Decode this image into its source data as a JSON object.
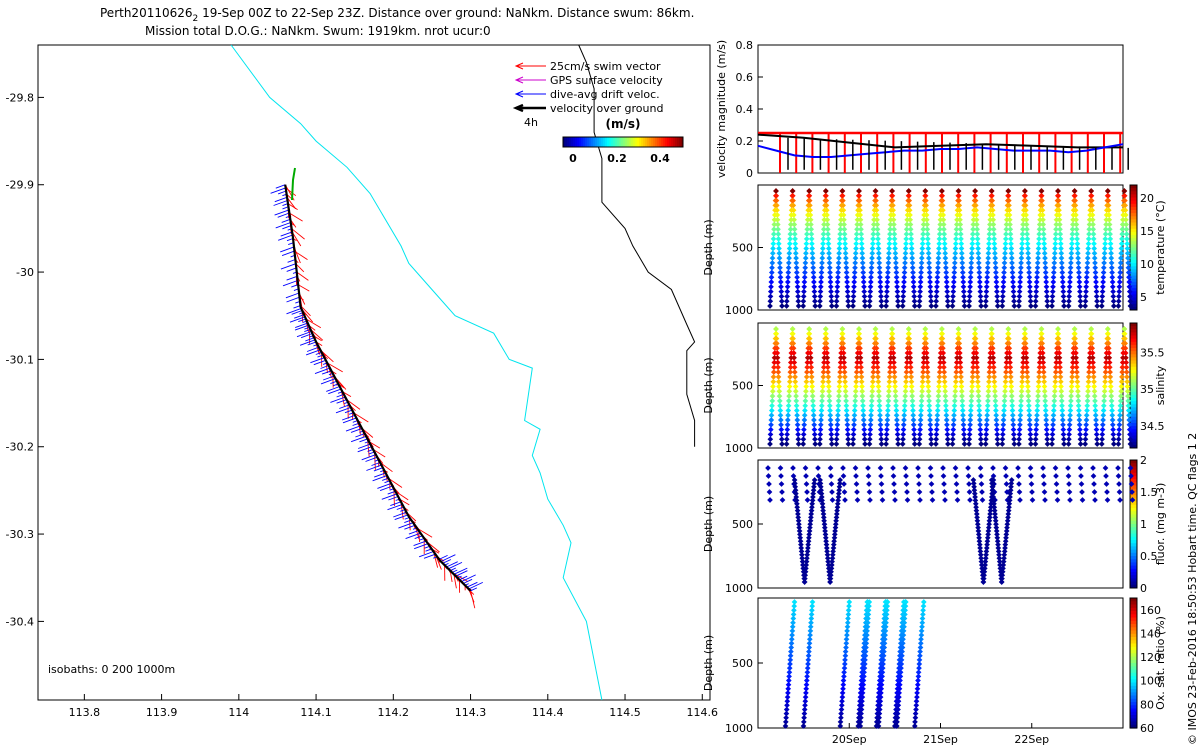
{
  "header": {
    "title_prefix": "Perth20110626",
    "title_sub": "2",
    "title_rest": " 19-Sep 00Z to 22-Sep 23Z. Distance over ground: NaNkm. Distance swum: 86km.",
    "title_line2": "Mission total D.O.G.: NaNkm. Swum: 1919km. nrot ucur:0"
  },
  "side_note": "© IMOS 23-Feb-2016 18:50:53 Hobart time. QC flags 1  2",
  "map": {
    "legend": [
      {
        "label": "25cm/s swim vector",
        "color": "#ff0000"
      },
      {
        "label": "GPS surface velocity",
        "color": "#cc00cc"
      },
      {
        "label": "dive-avg drift veloc.",
        "color": "#0000ff"
      },
      {
        "label": "velocity over ground",
        "color": "#000000"
      }
    ],
    "time_marker": "4h",
    "colorbar": {
      "unit": "(m/s)",
      "ticks": [
        "0",
        "0.2",
        "0.4"
      ]
    },
    "isobath_note": "isobaths: 0   200  1000m"
  },
  "chart_data": [
    {
      "type": "line",
      "id": "glider-track-map",
      "title": "",
      "xlabel": "",
      "ylabel": "",
      "xlim": [
        113.74,
        114.61
      ],
      "ylim": [
        -30.49,
        -29.74
      ],
      "xticks": [
        113.8,
        113.9,
        114,
        114.1,
        114.2,
        114.3,
        114.4,
        114.5,
        114.6
      ],
      "xtick_labels": [
        "113.8",
        "113.9",
        "114",
        "114.1",
        "114.2",
        "114.3",
        "114.4",
        "114.5",
        "114.6"
      ],
      "yticks": [
        -29.8,
        -29.9,
        -30,
        -30.1,
        -30.2,
        -30.3,
        -30.4
      ],
      "ytick_labels": [
        "-29.8",
        "-29.9",
        "-30",
        "-30.1",
        "-30.2",
        "-30.3",
        "-30.4"
      ],
      "series": [
        {
          "color": "#00e5ee",
          "x": [
            113.99,
            114.04,
            114.08,
            114.1,
            114.14,
            114.17,
            114.21,
            114.22,
            114.25,
            114.28,
            114.33,
            114.35,
            114.38,
            114.37,
            114.39,
            114.38,
            114.39,
            114.4,
            114.42,
            114.43,
            114.42,
            114.45,
            114.47
          ],
          "y": [
            -29.74,
            -29.8,
            -29.83,
            -29.85,
            -29.88,
            -29.91,
            -29.97,
            -29.99,
            -30.02,
            -30.05,
            -30.07,
            -30.1,
            -30.11,
            -30.17,
            -30.18,
            -30.21,
            -30.23,
            -30.26,
            -30.29,
            -30.31,
            -30.35,
            -30.4,
            -30.49
          ]
        },
        {
          "color": "#000000",
          "x": [
            114.44,
            114.45,
            114.46,
            114.46,
            114.47,
            114.47,
            114.5,
            114.51,
            114.53,
            114.56,
            114.57,
            114.58,
            114.59,
            114.58,
            114.58,
            114.58,
            114.59,
            114.59
          ],
          "y": [
            -29.74,
            -29.76,
            -29.79,
            -29.84,
            -29.87,
            -29.92,
            -29.95,
            -29.97,
            -30.0,
            -30.02,
            -30.04,
            -30.06,
            -30.08,
            -30.09,
            -30.12,
            -30.14,
            -30.17,
            -30.2
          ]
        },
        {
          "color": "#000000",
          "x": [
            114.06,
            114.07,
            114.08,
            114.1,
            114.13,
            114.16,
            114.19,
            114.22,
            114.26,
            114.3
          ],
          "y": [
            -29.9,
            -29.96,
            -30.04,
            -30.08,
            -30.13,
            -30.18,
            -30.23,
            -30.28,
            -30.33,
            -30.365
          ]
        }
      ]
    },
    {
      "type": "line",
      "id": "velocity-panel",
      "ylabel": "velocity magnitude (m/s)",
      "xlim": [
        0,
        4
      ],
      "ylim": [
        0,
        0.8
      ],
      "yticks": [
        0,
        0.2,
        0.4,
        0.6,
        0.8
      ],
      "ytick_labels": [
        "0",
        "0.2",
        "0.4",
        "0.6",
        "0.8"
      ],
      "series": [
        {
          "color": "#ff0000",
          "x": [
            0.0,
            1.0,
            2.0,
            3.0,
            4.0
          ],
          "y": [
            0.25,
            0.25,
            0.25,
            0.25,
            0.25
          ]
        },
        {
          "color": "#000000",
          "x": [
            0.0,
            0.5,
            1.0,
            1.5,
            2.0,
            2.5,
            3.0,
            3.5,
            4.0
          ],
          "y": [
            0.24,
            0.22,
            0.19,
            0.16,
            0.17,
            0.18,
            0.17,
            0.16,
            0.16
          ]
        },
        {
          "color": "#0000ff",
          "x": [
            0.0,
            0.2,
            0.4,
            0.6,
            0.8,
            1.0,
            1.2,
            1.4,
            1.6,
            1.8,
            2.0,
            2.2,
            2.4,
            2.6,
            2.8,
            3.0,
            3.2,
            3.4,
            3.6,
            3.8,
            4.0
          ],
          "y": [
            0.17,
            0.14,
            0.11,
            0.1,
            0.1,
            0.11,
            0.12,
            0.13,
            0.14,
            0.14,
            0.15,
            0.15,
            0.16,
            0.15,
            0.14,
            0.14,
            0.14,
            0.13,
            0.14,
            0.16,
            0.18
          ]
        }
      ]
    },
    {
      "type": "scatter",
      "id": "temperature-section",
      "ylabel": "Depth (m)",
      "colorbar_label": "temperature (°C)",
      "xlim": [
        0,
        4
      ],
      "ylim": [
        1000,
        0
      ],
      "yticks": [
        500,
        1000
      ],
      "ytick_labels": [
        "500",
        "1000"
      ],
      "clim": [
        3,
        22
      ],
      "cticks": [
        5,
        10,
        15,
        20
      ],
      "ctick_labels": [
        "5",
        "10",
        "15",
        "20"
      ],
      "profiles": 22,
      "max_depth": 1000,
      "variable": "temperature"
    },
    {
      "type": "scatter",
      "id": "salinity-section",
      "ylabel": "Depth (m)",
      "colorbar_label": "salinity",
      "xlim": [
        0,
        4
      ],
      "ylim": [
        1000,
        0
      ],
      "yticks": [
        500,
        1000
      ],
      "ytick_labels": [
        "500",
        "1000"
      ],
      "clim": [
        34.2,
        35.9
      ],
      "cticks": [
        34.5,
        35,
        35.5
      ],
      "ctick_labels": [
        "34.5",
        "35",
        "35.5"
      ],
      "profiles": 22,
      "max_depth": 1000,
      "variable": "salinity"
    },
    {
      "type": "scatter",
      "id": "fluorescence-section",
      "ylabel": "Depth (m)",
      "colorbar_label": "fluor. (mg m-3)",
      "xlim": [
        0,
        4
      ],
      "ylim": [
        1000,
        0
      ],
      "yticks": [
        500,
        1000
      ],
      "ytick_labels": [
        "500",
        "1000"
      ],
      "clim": [
        0,
        2
      ],
      "cticks": [
        0,
        0.5,
        1,
        1.5,
        2
      ],
      "ctick_labels": [
        "0",
        "0.5",
        "1",
        "1.5",
        "2"
      ],
      "deep_profiles": [
        0.62,
        0.9,
        2.58,
        2.78
      ],
      "variable": "fluorescence"
    },
    {
      "type": "scatter",
      "id": "oxygen-section",
      "ylabel": "Depth (m)",
      "colorbar_label": "Ox. sat. ratio (%)",
      "xlim": [
        0,
        4
      ],
      "ylim": [
        1000,
        0
      ],
      "yticks": [
        500,
        1000
      ],
      "ytick_labels": [
        "500",
        "1000"
      ],
      "xticks": [
        1.0,
        2.0,
        3.0
      ],
      "xtick_labels": [
        "20Sep",
        "21Sep",
        "22Sep"
      ],
      "clim": [
        60,
        170
      ],
      "cticks": [
        60,
        80,
        100,
        120,
        140,
        160
      ],
      "ctick_labels": [
        "60",
        "80",
        "100",
        "120",
        "140",
        "160"
      ],
      "profile_starts": [
        0.4,
        1.0,
        1.2,
        1.4
      ],
      "variable": "oxygen"
    }
  ]
}
